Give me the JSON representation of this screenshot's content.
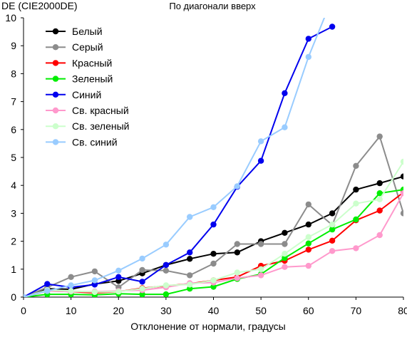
{
  "chart_data": {
    "type": "line",
    "title": "По диагонали вверх",
    "ylabel": "DE (CIE2000DE)",
    "xlabel": "Отклонение от нормали, градусы",
    "xlim": [
      0,
      80
    ],
    "ylim": [
      0,
      10
    ],
    "xticks": [
      0,
      10,
      20,
      30,
      40,
      50,
      60,
      70,
      80
    ],
    "yticks": [
      0,
      1,
      2,
      3,
      4,
      5,
      6,
      7,
      8,
      9,
      10
    ],
    "grid": false,
    "legend_position": "top-left",
    "x": [
      0,
      5,
      10,
      15,
      20,
      25,
      30,
      35,
      40,
      45,
      50,
      55,
      60,
      65,
      70,
      75,
      80
    ],
    "series": [
      {
        "name": "Белый",
        "color": "#000000",
        "values": [
          0,
          0.3,
          0.28,
          0.47,
          0.58,
          0.85,
          1.15,
          1.37,
          1.55,
          1.6,
          2.0,
          2.3,
          2.6,
          3.0,
          3.85,
          4.08,
          4.32
        ]
      },
      {
        "name": "Серый",
        "color": "#8c8c8c",
        "values": [
          0,
          0.35,
          0.72,
          0.92,
          0.35,
          0.97,
          0.95,
          0.78,
          1.2,
          1.9,
          1.9,
          1.9,
          3.32,
          2.58,
          4.7,
          5.75,
          3.0
        ]
      },
      {
        "name": "Красный",
        "color": "#ff0000",
        "values": [
          0,
          0.22,
          0.2,
          0.15,
          0.2,
          0.32,
          0.4,
          0.48,
          0.6,
          0.72,
          1.12,
          1.3,
          1.7,
          2.02,
          2.75,
          3.1,
          3.75
        ]
      },
      {
        "name": "Зеленый",
        "color": "#00ee00",
        "values": [
          0,
          0.1,
          0.1,
          0.08,
          0.12,
          0.1,
          0.1,
          0.3,
          0.37,
          0.65,
          0.82,
          1.4,
          1.92,
          2.42,
          2.78,
          3.72,
          3.85
        ]
      },
      {
        "name": "Синий",
        "color": "#0000ee",
        "values": [
          0,
          0.47,
          0.35,
          0.45,
          0.72,
          0.55,
          1.15,
          1.6,
          2.6,
          3.95,
          4.88,
          7.3,
          9.25,
          9.68,
          null,
          null,
          null
        ]
      },
      {
        "name": "Св. красный",
        "color": "#ff99cc",
        "values": [
          0,
          0.22,
          0.2,
          0.2,
          0.22,
          0.25,
          0.35,
          0.5,
          0.52,
          0.68,
          0.78,
          1.08,
          1.12,
          1.65,
          1.75,
          2.22,
          3.72
        ]
      },
      {
        "name": "Св. зеленый",
        "color": "#ccffcc",
        "values": [
          0,
          0.25,
          0.22,
          0.18,
          0.2,
          0.3,
          0.42,
          0.45,
          0.6,
          0.88,
          1.0,
          1.55,
          2.15,
          2.6,
          3.35,
          3.5,
          4.85
        ]
      },
      {
        "name": "Св. синий",
        "color": "#99ccff",
        "values": [
          0,
          0.22,
          0.42,
          0.6,
          0.95,
          1.38,
          1.88,
          2.87,
          3.22,
          3.97,
          5.58,
          6.08,
          8.6,
          10.7,
          null,
          null,
          null
        ]
      }
    ]
  }
}
